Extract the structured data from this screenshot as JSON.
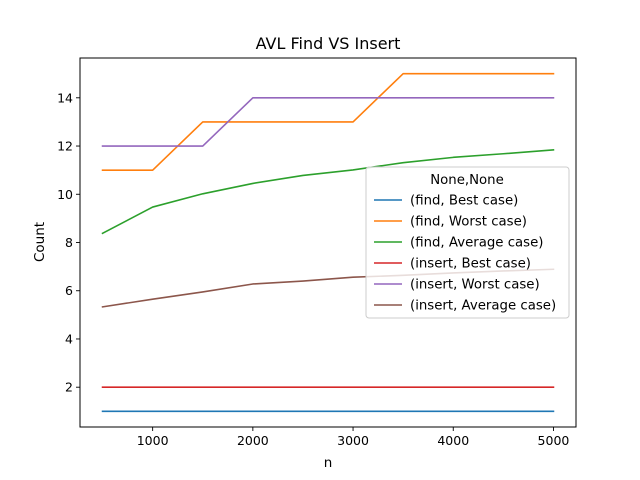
{
  "chart_data": {
    "type": "line",
    "title": "AVL Find VS Insert",
    "xlabel": "n",
    "ylabel": "Count",
    "x": [
      500,
      1000,
      1500,
      2000,
      2500,
      3000,
      3500,
      4000,
      4500,
      5000
    ],
    "xlim": [
      275,
      5225
    ],
    "ylim": [
      0.35,
      15.65
    ],
    "xticks": [
      1000,
      2000,
      3000,
      4000,
      5000
    ],
    "yticks": [
      2,
      4,
      6,
      8,
      10,
      12,
      14
    ],
    "legend": {
      "title": "None,None",
      "placement": "center-right"
    },
    "grid": false,
    "series": [
      {
        "name": "(find, Best case)",
        "color": "#1f77b4",
        "values": [
          1,
          1,
          1,
          1,
          1,
          1,
          1,
          1,
          1,
          1
        ]
      },
      {
        "name": "(find, Worst case)",
        "color": "#ff7f0e",
        "values": [
          11,
          11,
          13,
          13,
          13,
          13,
          15,
          15,
          15,
          15
        ]
      },
      {
        "name": "(find, Average case)",
        "color": "#2ca02c",
        "values": [
          8.38,
          9.47,
          10.02,
          10.45,
          10.78,
          11.01,
          11.31,
          11.53,
          11.68,
          11.84
        ]
      },
      {
        "name": "(insert, Best case)",
        "color": "#d62728",
        "values": [
          2,
          2,
          2,
          2,
          2,
          2,
          2,
          2,
          2,
          2
        ]
      },
      {
        "name": "(insert, Worst case)",
        "color": "#9467bd",
        "values": [
          12,
          12,
          12,
          14,
          14,
          14,
          14,
          14,
          14,
          14
        ]
      },
      {
        "name": "(insert, Average case)",
        "color": "#8c564b",
        "values": [
          5.33,
          5.65,
          5.95,
          6.28,
          6.4,
          6.56,
          6.64,
          6.74,
          6.82,
          6.89
        ]
      }
    ]
  }
}
